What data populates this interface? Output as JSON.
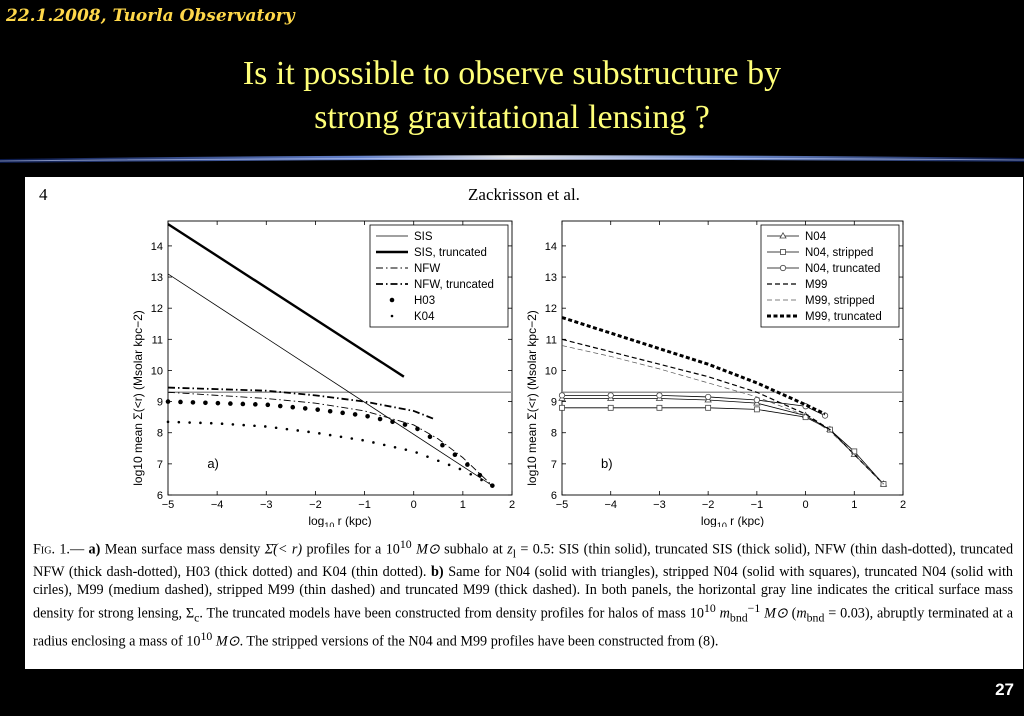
{
  "header": {
    "date_place": "22.1.2008, Tuorla Observatory"
  },
  "slide": {
    "title_line1": "Is it possible to observe substructure by",
    "title_line2": "strong gravitational lensing ?",
    "number": "27"
  },
  "paper": {
    "page_number": "4",
    "running_head": "Zackrisson et al.",
    "caption": "Fig. 1.— a) Mean surface mass density Σ̄(< r) profiles for a 10^10 M⊙ subhalo at z_l = 0.5: SIS (thin solid), truncated SIS (thick solid), NFW (thin dash-dotted), truncated NFW (thick dash-dotted), H03 (thick dotted) and K04 (thin dotted). b) Same for N04 (solid with triangles), stripped N04 (solid with squares), truncated N04 (solid with cirles), M99 (medium dashed), stripped M99 (thin dashed) and truncated M99 (thick dashed). In both panels, the horizontal gray line indicates the critical surface mass density for strong lensing, Σc. The truncated models have been constructed from density profiles for halos of mass 10^10 m_bnd^-1 M⊙ (m_bnd = 0.03), abruptly terminated at a radius enclosing a mass of 10^10 M⊙. The stripped versions of the N04 and M99 profiles have been constructed from (8).",
    "caption_parts": {
      "fig_label": "Fig. 1.—",
      "part_a_label": "a)",
      "part_a_text1": "Mean surface mass density",
      "sigma_bar": "Σ̄(< r)",
      "part_a_text2": "profiles for a",
      "mass1_base": "10",
      "mass1_exp": "10",
      "msun": "M⊙",
      "part_a_text3": "subhalo at",
      "zl": "z",
      "zl_sub": "l",
      "zl_val": "= 0.5: SIS (thin solid), truncated SIS (thick solid), NFW (thin dash-dotted), truncated NFW (thick dash-dotted), H03 (thick dotted) and K04 (thin dotted).",
      "part_b_label": "b)",
      "part_b_text": "Same for N04 (solid with triangles), stripped N04 (solid with squares), truncated N04 (solid with cirles), M99 (medium dashed), stripped M99 (thin dashed) and truncated M99 (thick dashed). In both panels, the horizontal gray line indicates the critical surface mass density for strong lensing, Σ",
      "sigma_c_sub": "c",
      "part_c_text1": ". The truncated models have been constructed from density profiles for halos of mass",
      "mass2_base": "10",
      "mass2_exp": "10",
      "mbnd": "m",
      "mbnd_sub": "bnd",
      "mbnd_exp": "−1",
      "mbnd_eq": "= 0.03), abruptly terminated at a radius enclosing a mass of",
      "mass3_base": "10",
      "mass3_exp": "10",
      "part_c_text2": ". The stripped versions of the N04 and M99 profiles have been constructed from (8)."
    }
  },
  "chart_data": [
    {
      "type": "line",
      "panel_label": "a)",
      "xlabel": "log10 r (kpc)",
      "ylabel": "log10 mean Σ(<r) (Msolar kpc−2)",
      "xlim": [
        -5,
        2
      ],
      "ylim": [
        6,
        14.8
      ],
      "xticks": [
        -5,
        -4,
        -3,
        -2,
        -1,
        0,
        1,
        2
      ],
      "yticks": [
        6,
        7,
        8,
        9,
        10,
        11,
        12,
        13,
        14
      ],
      "sigma_crit": 9.3,
      "legend_position": "top-right",
      "series": [
        {
          "name": "SIS",
          "style": "thin-solid",
          "x": [
            -5,
            1.6
          ],
          "y": [
            13.1,
            6.3
          ]
        },
        {
          "name": "SIS, truncated",
          "style": "thick-solid",
          "x": [
            -5,
            -0.2
          ],
          "y": [
            14.7,
            9.8
          ]
        },
        {
          "name": "NFW",
          "style": "thin-dashdot",
          "x": [
            -5,
            -4,
            -3,
            -2,
            -1,
            0,
            0.5,
            1,
            1.6
          ],
          "y": [
            9.3,
            9.2,
            9.1,
            8.95,
            8.7,
            8.25,
            7.8,
            7.2,
            6.3
          ]
        },
        {
          "name": "NFW, truncated",
          "style": "thick-dashdot",
          "x": [
            -5,
            -4,
            -3,
            -2,
            -1,
            0,
            0.4
          ],
          "y": [
            9.45,
            9.4,
            9.35,
            9.2,
            9.0,
            8.7,
            8.45
          ]
        },
        {
          "name": "H03",
          "style": "thick-dotted",
          "x": [
            -5,
            -4,
            -3,
            -2,
            -1,
            0,
            0.5,
            1,
            1.6
          ],
          "y": [
            9.0,
            8.95,
            8.9,
            8.75,
            8.55,
            8.2,
            7.7,
            7.1,
            6.3
          ]
        },
        {
          "name": "K04",
          "style": "thin-dotted",
          "x": [
            -5,
            -4,
            -3,
            -2,
            -1,
            0,
            0.5,
            1,
            1.6
          ],
          "y": [
            8.35,
            8.3,
            8.2,
            8.0,
            7.75,
            7.4,
            7.1,
            6.8,
            6.3
          ]
        }
      ]
    },
    {
      "type": "line",
      "panel_label": "b)",
      "xlabel": "log10 r (kpc)",
      "ylabel": "log10 mean Σ(<r) (Msolar kpc−2)",
      "xlim": [
        -5,
        2
      ],
      "ylim": [
        6,
        14.8
      ],
      "xticks": [
        -5,
        -4,
        -3,
        -2,
        -1,
        0,
        1,
        2
      ],
      "yticks": [
        6,
        7,
        8,
        9,
        10,
        11,
        12,
        13,
        14
      ],
      "sigma_crit": 9.3,
      "legend_position": "top-right",
      "series": [
        {
          "name": "N04",
          "style": "solid-triangles",
          "x": [
            -5,
            -4,
            -3,
            -2,
            -1,
            0,
            0.5,
            1,
            1.6
          ],
          "y": [
            9.1,
            9.1,
            9.1,
            9.05,
            8.95,
            8.55,
            8.1,
            7.3,
            6.35
          ]
        },
        {
          "name": "N04, stripped",
          "style": "solid-squares",
          "x": [
            -5,
            -4,
            -3,
            -2,
            -1,
            0,
            0.5,
            1,
            1.6
          ],
          "y": [
            8.8,
            8.8,
            8.8,
            8.8,
            8.75,
            8.5,
            8.1,
            7.4,
            6.35
          ]
        },
        {
          "name": "N04, truncated",
          "style": "solid-circles",
          "x": [
            -5,
            -4,
            -3,
            -2,
            -1,
            0,
            0.4
          ],
          "y": [
            9.2,
            9.2,
            9.2,
            9.15,
            9.05,
            8.85,
            8.55
          ]
        },
        {
          "name": "M99",
          "style": "medium-dashed",
          "x": [
            -5,
            -4,
            -3,
            -2,
            -1,
            0,
            0.5,
            1,
            1.6
          ],
          "y": [
            11.0,
            10.6,
            10.2,
            9.8,
            9.3,
            8.6,
            8.1,
            7.3,
            6.35
          ]
        },
        {
          "name": "M99, stripped",
          "style": "thin-dashed",
          "x": [
            -5,
            -4,
            -3,
            -2,
            -1,
            0,
            0.5,
            1,
            1.6
          ],
          "y": [
            10.8,
            10.45,
            10.05,
            9.6,
            9.15,
            8.55,
            8.05,
            7.3,
            6.35
          ]
        },
        {
          "name": "M99, truncated",
          "style": "thick-dashed",
          "x": [
            -5,
            -4,
            -3,
            -2,
            -1,
            0,
            0.4
          ],
          "y": [
            11.7,
            11.2,
            10.7,
            10.2,
            9.6,
            8.9,
            8.6
          ]
        }
      ]
    }
  ]
}
